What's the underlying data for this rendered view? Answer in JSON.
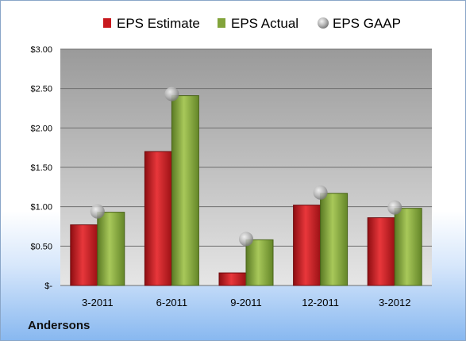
{
  "chart_data": {
    "type": "bar",
    "title": "",
    "xlabel": "",
    "ylabel": "",
    "categories": [
      "3-2011",
      "6-2011",
      "9-2011",
      "12-2011",
      "3-2012"
    ],
    "series": [
      {
        "name": "EPS Estimate",
        "type": "bar",
        "color": "#c8191e",
        "values": [
          0.77,
          1.7,
          0.16,
          1.02,
          0.86
        ]
      },
      {
        "name": "EPS Actual",
        "type": "bar",
        "color": "#82a43b",
        "values": [
          0.93,
          2.41,
          0.58,
          1.17,
          0.98
        ]
      },
      {
        "name": "EPS GAAP",
        "type": "scatter",
        "color": "#a6a6a6",
        "values": [
          0.94,
          2.43,
          0.59,
          1.18,
          0.99
        ]
      }
    ],
    "ylim": [
      0,
      3.0
    ],
    "yticks": [
      0,
      0.5,
      1.0,
      1.5,
      2.0,
      2.5,
      3.0
    ],
    "ytick_labels": [
      "$-",
      "$0.50",
      "$1.00",
      "$1.50",
      "$2.00",
      "$2.50",
      "$3.00"
    ],
    "grid": true,
    "legend_position": "top"
  },
  "company": "Andersons"
}
